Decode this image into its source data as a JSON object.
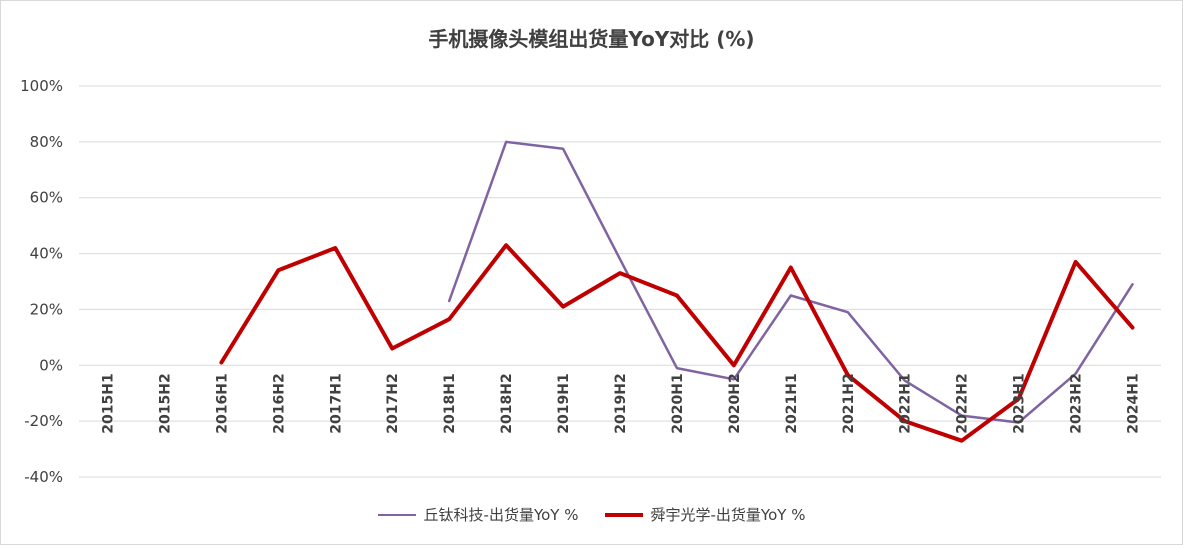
{
  "chart_data": {
    "type": "line",
    "title": "手机摄像头模组出货量YoY对比 (%)",
    "xlabel": "",
    "ylabel": "",
    "categories": [
      "2015H1",
      "2015H2",
      "2016H1",
      "2016H2",
      "2017H1",
      "2017H2",
      "2018H1",
      "2018H2",
      "2019H1",
      "2019H2",
      "2020H1",
      "2020H2",
      "2021H1",
      "2021H2",
      "2022H1",
      "2022H2",
      "2023H1",
      "2023H2",
      "2024H1"
    ],
    "ylim": [
      -40,
      100
    ],
    "yticks": [
      -40,
      -20,
      0,
      20,
      40,
      60,
      80,
      100
    ],
    "ytick_labels": [
      "-40%",
      "-20%",
      "0%",
      "20%",
      "40%",
      "60%",
      "80%",
      "100%"
    ],
    "grid": true,
    "legend_position": "bottom",
    "series": [
      {
        "name": "丘钛科技-出货量YoY %",
        "color": "#8064a2",
        "values": [
          null,
          null,
          null,
          null,
          null,
          null,
          23,
          80,
          77.5,
          38,
          -1,
          -5,
          25,
          19,
          -5.5,
          -18,
          -20.5,
          -3,
          29
        ]
      },
      {
        "name": "舜宇光学-出货量YoY %",
        "color": "#c00000",
        "values": [
          null,
          null,
          1,
          34,
          42,
          6,
          16.5,
          43,
          21,
          33,
          25,
          0,
          35,
          -3.5,
          -20,
          -27,
          -12,
          37,
          13.5
        ]
      }
    ]
  }
}
